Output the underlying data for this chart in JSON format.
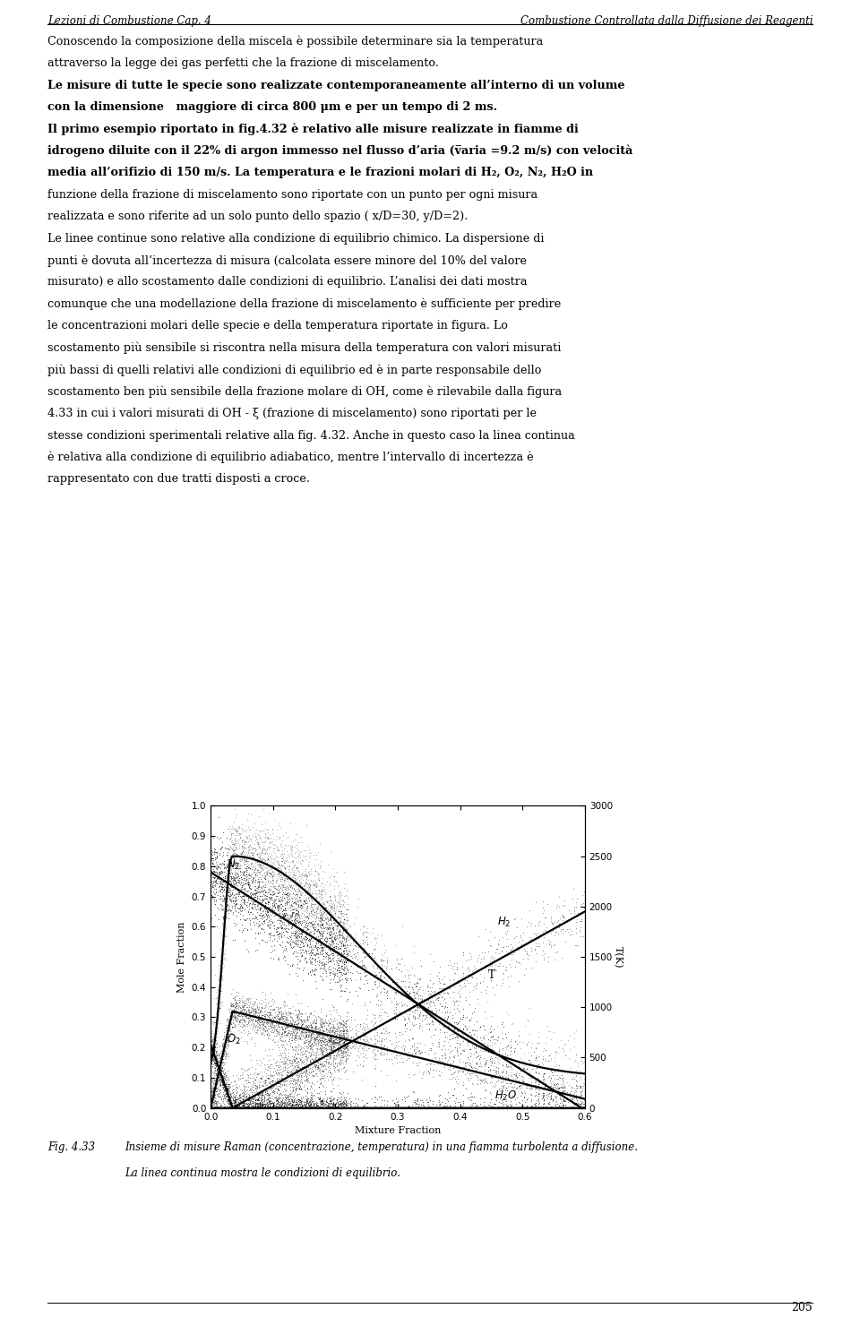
{
  "page_width": 9.6,
  "page_height": 14.99,
  "bg_color": "#ffffff",
  "header_left": "Lezioni di Combustione Cap. 4",
  "header_right": "Combustione Controllata dalla Diffusione dei Reagenti",
  "footer_text": "205",
  "plot": {
    "xlim": [
      0.0,
      0.6
    ],
    "ylim_left": [
      0.0,
      1.0
    ],
    "ylim_right": [
      0,
      3000
    ],
    "xlabel": "Mixture Fraction",
    "ylabel_left": "Mole Fraction",
    "ylabel_right": "T(K)",
    "xticks": [
      0.0,
      0.1,
      0.2,
      0.3,
      0.4,
      0.5,
      0.6
    ],
    "yticks_left": [
      0.0,
      0.1,
      0.2,
      0.3,
      0.4,
      0.5,
      0.6,
      0.7,
      0.8,
      0.9,
      1.0
    ],
    "yticks_right": [
      0,
      500,
      1000,
      1500,
      2000,
      2500,
      3000
    ]
  },
  "fig_caption_label": "Fig. 4.33",
  "fig_caption_line1": "Insieme di misure Raman (concentrazione, temperatura) in una fiamma turbolenta a diffusione.",
  "fig_caption_line2": "La linea continua mostra le condizioni di equilibrio."
}
